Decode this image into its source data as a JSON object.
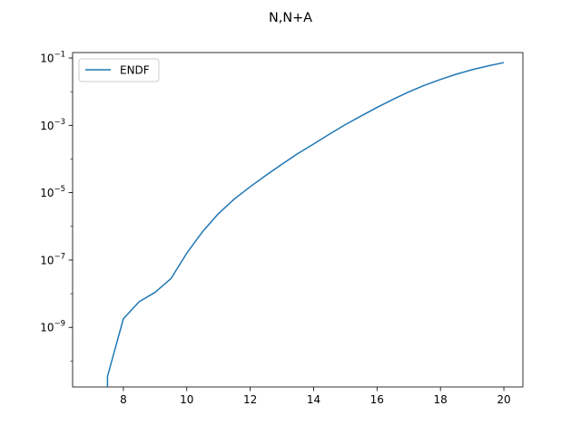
{
  "chart_data": {
    "type": "line",
    "title": "N,N+A",
    "xlabel": "",
    "ylabel": "",
    "xscale": "linear",
    "yscale": "log",
    "xlim": [
      6.4,
      20.6
    ],
    "ylim": [
      1.7e-11,
      0.145
    ],
    "grid": false,
    "legend_placement": "top-left",
    "x_ticks": [
      8,
      10,
      12,
      14,
      16,
      18,
      20
    ],
    "x_tick_labels": [
      "8",
      "10",
      "12",
      "14",
      "16",
      "18",
      "20"
    ],
    "y_ticks": [
      {
        "value": 1e-09,
        "base": "10",
        "exp": "−9"
      },
      {
        "value": 1e-07,
        "base": "10",
        "exp": "−7"
      },
      {
        "value": 1e-05,
        "base": "10",
        "exp": "−5"
      },
      {
        "value": 0.001,
        "base": "10",
        "exp": "−3"
      },
      {
        "value": 0.1,
        "base": "10",
        "exp": "−1"
      }
    ],
    "series": [
      {
        "name": "ENDF",
        "color": "#1f77b4",
        "x": [
          7.5,
          7.5,
          8.0,
          8.5,
          9.0,
          9.5,
          10.0,
          10.5,
          11.0,
          11.5,
          12.0,
          12.5,
          13.0,
          13.5,
          14.0,
          14.5,
          15.0,
          15.5,
          16.0,
          16.5,
          17.0,
          17.5,
          18.0,
          18.5,
          19.0,
          19.5,
          20.0
        ],
        "y": [
          1.7e-11,
          3.5e-11,
          1.8e-09,
          5.8e-09,
          1.1e-08,
          2.8e-08,
          1.6e-07,
          7e-07,
          2.4e-06,
          6.5e-06,
          1.5e-05,
          3.3e-05,
          7e-05,
          0.000145,
          0.00028,
          0.00055,
          0.00105,
          0.0019,
          0.0034,
          0.0059,
          0.0098,
          0.0155,
          0.023,
          0.033,
          0.045,
          0.058,
          0.073
        ]
      }
    ]
  }
}
